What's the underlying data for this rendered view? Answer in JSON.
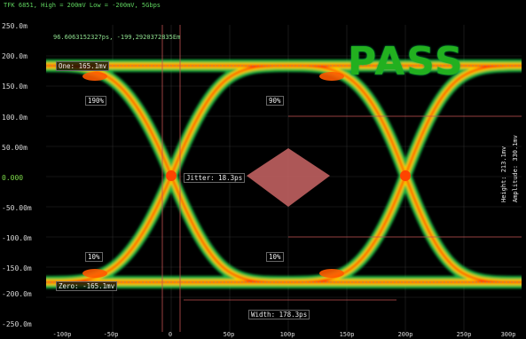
{
  "header": {
    "text": "TFK 6851, High = 200mV Low = -200mV, 5Gbps"
  },
  "cursor_readout": "96.6063152327ps, -199,2920372835Em",
  "status": {
    "result": "PASS"
  },
  "y_axis": {
    "ticks": [
      "250.0m",
      "200.0m",
      "150.0m",
      "100.0m",
      "50.00m",
      "0.000",
      "-50.00m",
      "-100.0m",
      "-150.0m",
      "-200.0m",
      "-250.0m"
    ]
  },
  "x_axis": {
    "ticks": [
      "-100p",
      "-50p",
      "0",
      "50p",
      "100p",
      "150p",
      "200p",
      "250p",
      "300p"
    ]
  },
  "markers": {
    "one_level": "One: 165.1mv",
    "rise_90": "190%",
    "fall_90": "90%",
    "rise_10": "10%",
    "fall_10": "10%",
    "zero_level": "Zero: -165.1mv",
    "jitter": "Jitter: 18.3ps",
    "width": "Width: 178.3ps",
    "height": "Height: 213.1mv",
    "amplitude": "Amplitude: 330.1mv"
  },
  "colors": {
    "pass": "#22b01f",
    "eye_core": "#ff3300",
    "eye_mid": "#ffcc00",
    "eye_outer": "#22d04a",
    "mask": "#c06060"
  }
}
